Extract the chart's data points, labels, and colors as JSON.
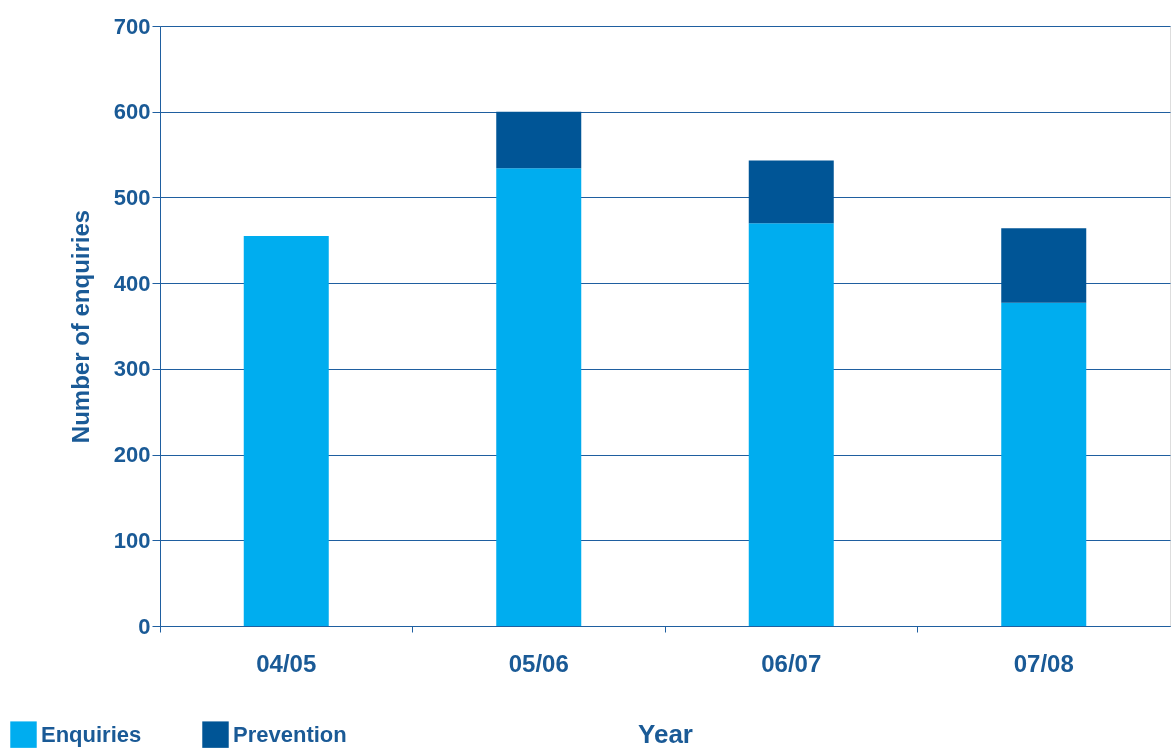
{
  "chart_data": {
    "type": "bar",
    "stacked": true,
    "xlabel": "Year",
    "ylabel": "Number of enquiries",
    "categories": [
      "04/05",
      "05/06",
      "06/07",
      "07/08"
    ],
    "series": [
      {
        "name": "Enquiries",
        "color": "#00adef",
        "values": [
          455,
          534,
          470,
          377
        ]
      },
      {
        "name": "Prevention",
        "color": "#005596",
        "values": [
          0,
          66,
          73,
          87
        ]
      }
    ],
    "ylim": [
      0,
      700
    ],
    "yticks": [
      0,
      100,
      200,
      300,
      400,
      500,
      600,
      700
    ],
    "grid": "y",
    "legend": "bottom left"
  }
}
